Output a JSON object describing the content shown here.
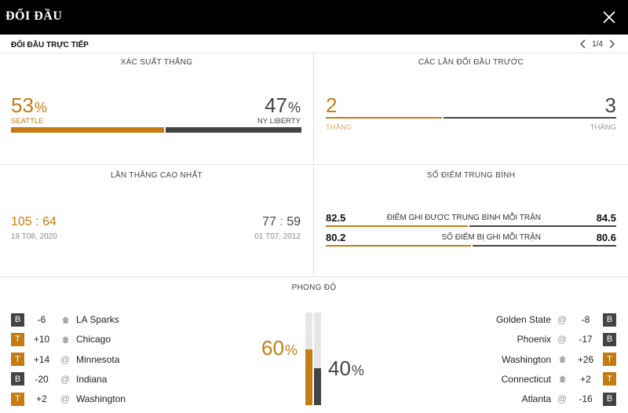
{
  "header": {
    "title": "ĐỐI ĐẦU"
  },
  "subheader": {
    "label": "ĐỐI ĐẦU TRỰC TIẾP",
    "pager": "1/4"
  },
  "colors": {
    "accent": "#c47c12",
    "dark": "#444444"
  },
  "win_prob": {
    "title": "XÁC SUẤT THẮNG",
    "left": {
      "value": "53",
      "pct": "%",
      "team": "SEATTLE",
      "fraction": 0.53
    },
    "right": {
      "value": "47",
      "pct": "%",
      "team": "NY LIBERTY",
      "fraction": 0.47
    }
  },
  "previous": {
    "title": "CÁC LẦN ĐỐI ĐẦU TRƯỚC",
    "left": {
      "value": "2",
      "label": "THẮNG"
    },
    "right": {
      "value": "3",
      "label": "THẮNG"
    },
    "left_fraction": 0.4
  },
  "biggest_win": {
    "title": "LẦN THẮNG CAO NHẤT",
    "left": {
      "a": "105",
      "sep": ":",
      "b": "64",
      "date": "19 T08, 2020"
    },
    "right": {
      "a": "77",
      "sep": ":",
      "b": "59",
      "date": "01 T07, 2012"
    }
  },
  "average": {
    "title": "SỐ ĐIỂM TRUNG BÌNH",
    "rows": [
      {
        "left": "82.5",
        "label": "ĐIỂM GHI ĐƯỢC TRUNG BÌNH MỖI TRẬN",
        "right": "84.5",
        "left_fraction": 0.49
      },
      {
        "left": "80.2",
        "label": "SỐ ĐIỂM BỊ GHI MỖI TRẬN",
        "right": "80.6",
        "left_fraction": 0.5
      }
    ]
  },
  "form": {
    "title": "PHONG ĐỘ",
    "left_pct": "60",
    "right_pct": "40",
    "pct": "%",
    "left_fraction": 0.6,
    "right_fraction": 0.4,
    "left_games": [
      {
        "result": "B",
        "diff": "-6",
        "venue": "home-icon",
        "team": "LA Sparks"
      },
      {
        "result": "T",
        "diff": "+10",
        "venue": "home-icon",
        "team": "Chicago"
      },
      {
        "result": "T",
        "diff": "+14",
        "venue": "away-icon",
        "team": "Minnesota"
      },
      {
        "result": "B",
        "diff": "-20",
        "venue": "away-icon",
        "team": "Indiana"
      },
      {
        "result": "T",
        "diff": "+2",
        "venue": "away-icon",
        "team": "Washington"
      }
    ],
    "right_games": [
      {
        "result": "B",
        "diff": "-8",
        "venue": "away-icon",
        "team": "Golden State"
      },
      {
        "result": "B",
        "diff": "-17",
        "venue": "away-icon",
        "team": "Phoenix"
      },
      {
        "result": "T",
        "diff": "+26",
        "venue": "home-icon",
        "team": "Washington"
      },
      {
        "result": "T",
        "diff": "+2",
        "venue": "home-icon",
        "team": "Connecticut"
      },
      {
        "result": "B",
        "diff": "-16",
        "venue": "away-icon",
        "team": "Atlanta"
      }
    ]
  }
}
